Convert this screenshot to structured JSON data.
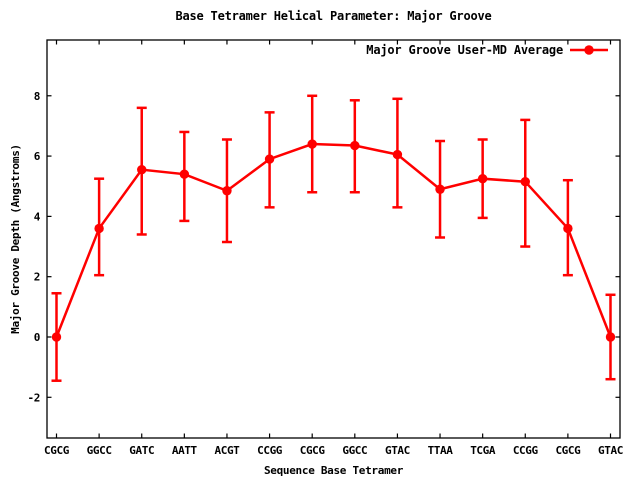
{
  "window": {
    "background": "#ffffff",
    "foreground": "#000000"
  },
  "chart_data": {
    "type": "line",
    "title": "Base Tetramer Helical Parameter: Major Groove",
    "xlabel": "Sequence Base Tetramer",
    "ylabel": "Major Groove Depth (Angstroms)",
    "grid": false,
    "legend": {
      "label": "Major Groove User-MD Average",
      "position": "top-right-inside",
      "marker": "filled-circle",
      "color": "#ff0000"
    },
    "categories": [
      "CGCG",
      "GGCC",
      "GATC",
      "AATT",
      "ACGT",
      "CCGG",
      "CGCG",
      "GGCC",
      "GTAC",
      "TTAA",
      "TCGA",
      "CCGG",
      "CGCG",
      "GTAC"
    ],
    "series": [
      {
        "name": "Major Groove User-MD Average",
        "color": "#ff0000",
        "marker": "filled-circle",
        "values": [
          0.0,
          3.6,
          5.55,
          5.4,
          4.85,
          5.9,
          6.4,
          6.35,
          6.05,
          4.9,
          5.25,
          5.15,
          3.6,
          0.0
        ],
        "err_low": [
          -1.45,
          2.05,
          3.4,
          3.85,
          3.15,
          4.3,
          4.8,
          4.8,
          4.3,
          3.3,
          3.95,
          3.0,
          2.05,
          -1.4
        ],
        "err_high": [
          1.45,
          5.25,
          7.6,
          6.8,
          6.55,
          7.45,
          8.0,
          7.85,
          7.9,
          6.5,
          6.55,
          7.2,
          5.2,
          1.4
        ]
      }
    ],
    "yticks": [
      -2,
      0,
      2,
      4,
      6,
      8
    ],
    "ylim": [
      -3.35,
      9.85
    ],
    "ylabel_side": "left",
    "axis_color": "#000000"
  }
}
